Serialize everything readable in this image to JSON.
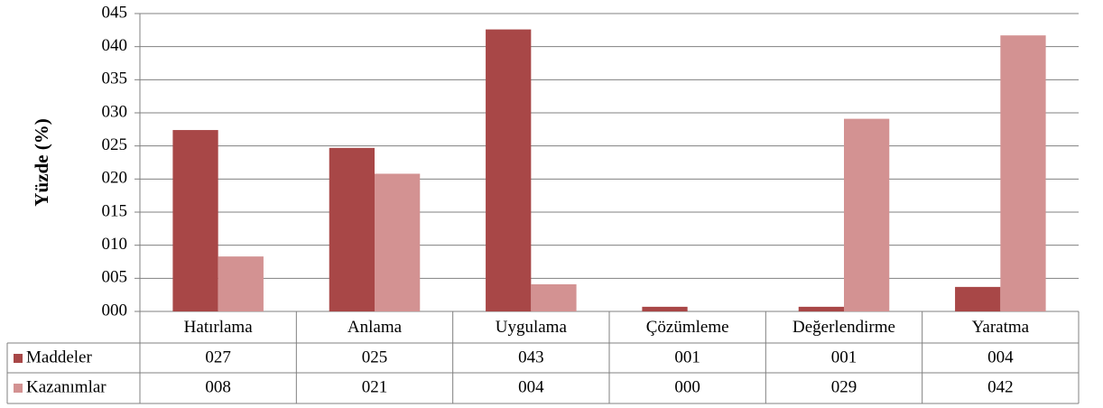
{
  "chart_data": {
    "type": "bar",
    "y_label": "Yüzde (%)",
    "categories": [
      "Hatırlama",
      "Anlama",
      "Uygulama",
      "Çözümleme",
      "Değerlendirme",
      "Yaratma"
    ],
    "series": [
      {
        "name": "Maddeler",
        "color": "#a84747",
        "values": [
          27.4,
          24.7,
          42.6,
          0.7,
          0.7,
          3.7
        ],
        "value_labels": [
          "027",
          "025",
          "043",
          "001",
          "001",
          "004"
        ]
      },
      {
        "name": "Kazanımlar",
        "color": "#d39292",
        "values": [
          8.3,
          20.8,
          4.1,
          0,
          29.1,
          41.7
        ],
        "value_labels": [
          "008",
          "021",
          "004",
          "000",
          "029",
          "042"
        ]
      }
    ],
    "ylim": [
      0,
      45
    ],
    "yticks": [
      {
        "value": 0,
        "label": "000"
      },
      {
        "value": 5,
        "label": "005"
      },
      {
        "value": 10,
        "label": "010"
      },
      {
        "value": 15,
        "label": "015"
      },
      {
        "value": 20,
        "label": "020"
      },
      {
        "value": 25,
        "label": "025"
      },
      {
        "value": 30,
        "label": "030"
      },
      {
        "value": 35,
        "label": "035"
      },
      {
        "value": 40,
        "label": "040"
      },
      {
        "value": 45,
        "label": "045"
      }
    ],
    "grid": true
  }
}
